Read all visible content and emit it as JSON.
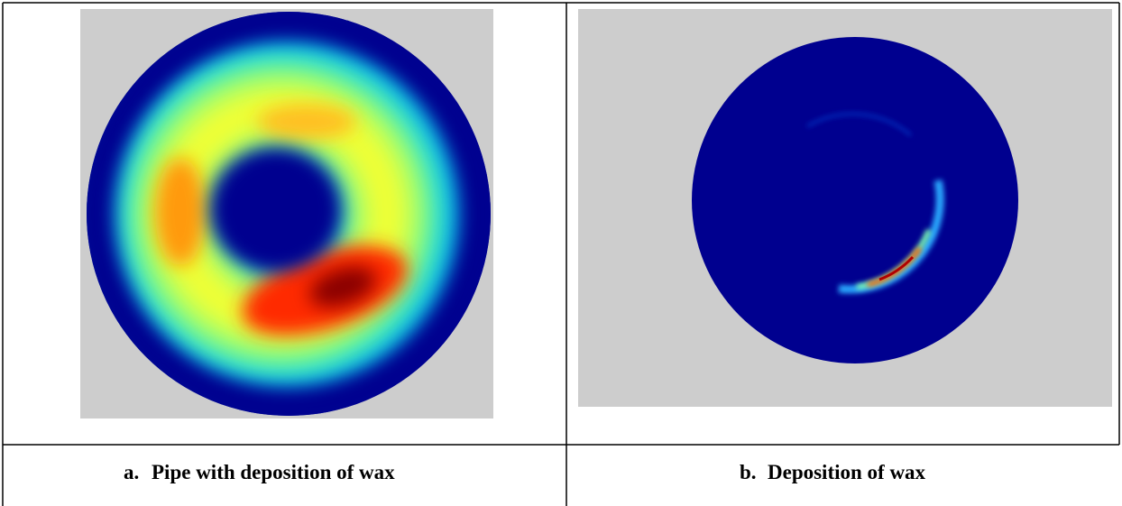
{
  "panels": [
    {
      "marker": "a.",
      "caption": "Pipe with deposition of wax"
    },
    {
      "marker": "b.",
      "caption": "Deposition of wax"
    }
  ]
}
